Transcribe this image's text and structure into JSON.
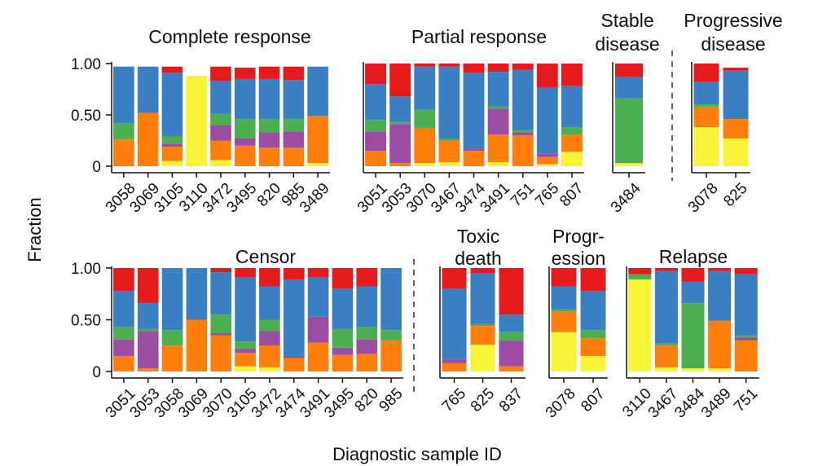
{
  "figure": {
    "y_axis_label": "Fraction",
    "x_axis_label": "Diagnostic sample ID",
    "y_tick_labels": [
      "1.00",
      "0.50",
      "0"
    ]
  },
  "colors": {
    "red": "#e41a1c",
    "blue": "#3a7fc1",
    "green": "#4caf4f",
    "purple": "#9b4da3",
    "orange": "#ff7f0e",
    "yellow": "#f7f336"
  },
  "chart_data": [
    {
      "type": "bar",
      "stacked": true,
      "title": "Complete response",
      "categories": [
        "3058",
        "3069",
        "3105",
        "3110",
        "3472",
        "3495",
        "820",
        "985",
        "3489"
      ],
      "ylim": [
        0,
        1
      ],
      "series": [
        {
          "name": "yellow",
          "values": [
            0.0,
            0.0,
            0.05,
            0.88,
            0.06,
            0.0,
            0.0,
            0.0,
            0.03
          ]
        },
        {
          "name": "orange",
          "values": [
            0.26,
            0.52,
            0.14,
            0.0,
            0.19,
            0.2,
            0.18,
            0.18,
            0.46
          ]
        },
        {
          "name": "purple",
          "values": [
            0.0,
            0.0,
            0.03,
            0.0,
            0.15,
            0.07,
            0.15,
            0.16,
            0.0
          ]
        },
        {
          "name": "green",
          "values": [
            0.16,
            0.0,
            0.07,
            0.0,
            0.11,
            0.19,
            0.13,
            0.12,
            0.0
          ]
        },
        {
          "name": "blue",
          "values": [
            0.55,
            0.45,
            0.62,
            0.0,
            0.32,
            0.39,
            0.39,
            0.38,
            0.48
          ]
        },
        {
          "name": "red",
          "values": [
            0.0,
            0.0,
            0.06,
            0.0,
            0.14,
            0.11,
            0.12,
            0.13,
            0.0
          ]
        }
      ]
    },
    {
      "type": "bar",
      "stacked": true,
      "title": "Partial response",
      "categories": [
        "3051",
        "3053",
        "3070",
        "3467",
        "3474",
        "3491",
        "751",
        "765",
        "807"
      ],
      "ylim": [
        0,
        1
      ],
      "series": [
        {
          "name": "yellow",
          "values": [
            0.0,
            0.0,
            0.03,
            0.04,
            0.0,
            0.04,
            0.0,
            0.02,
            0.14
          ]
        },
        {
          "name": "orange",
          "values": [
            0.15,
            0.03,
            0.34,
            0.21,
            0.15,
            0.27,
            0.3,
            0.07,
            0.17
          ]
        },
        {
          "name": "purple",
          "values": [
            0.19,
            0.38,
            0.0,
            0.0,
            0.02,
            0.25,
            0.03,
            0.03,
            0.0
          ]
        },
        {
          "name": "green",
          "values": [
            0.11,
            0.02,
            0.18,
            0.02,
            0.0,
            0.02,
            0.02,
            0.0,
            0.07
          ]
        },
        {
          "name": "blue",
          "values": [
            0.35,
            0.25,
            0.42,
            0.7,
            0.74,
            0.34,
            0.59,
            0.65,
            0.4
          ]
        },
        {
          "name": "red",
          "values": [
            0.2,
            0.32,
            0.03,
            0.03,
            0.09,
            0.08,
            0.06,
            0.23,
            0.22
          ]
        }
      ]
    },
    {
      "type": "bar",
      "stacked": true,
      "title": "Stable disease",
      "title_lines": [
        "Stable",
        "disease"
      ],
      "categories": [
        "3484"
      ],
      "ylim": [
        0,
        1
      ],
      "series": [
        {
          "name": "yellow",
          "values": [
            0.03
          ]
        },
        {
          "name": "green",
          "values": [
            0.63
          ]
        },
        {
          "name": "blue",
          "values": [
            0.21
          ]
        },
        {
          "name": "red",
          "values": [
            0.13
          ]
        }
      ]
    },
    {
      "type": "bar",
      "stacked": true,
      "title": "Progressive disease",
      "title_lines": [
        "Progressive",
        "disease"
      ],
      "categories": [
        "3078",
        "825"
      ],
      "ylim": [
        0,
        1
      ],
      "series": [
        {
          "name": "yellow",
          "values": [
            0.38,
            0.27
          ]
        },
        {
          "name": "orange",
          "values": [
            0.2,
            0.19
          ]
        },
        {
          "name": "green",
          "values": [
            0.02,
            0.0
          ]
        },
        {
          "name": "blue",
          "values": [
            0.22,
            0.47
          ]
        },
        {
          "name": "red",
          "values": [
            0.18,
            0.03
          ]
        }
      ]
    },
    {
      "type": "bar",
      "stacked": true,
      "title": "Censor",
      "categories": [
        "3051",
        "3053",
        "3058",
        "3069",
        "3070",
        "3105",
        "3472",
        "3474",
        "3491",
        "3495",
        "820",
        "985"
      ],
      "ylim": [
        0,
        1
      ],
      "series": [
        {
          "name": "yellow",
          "values": [
            0.0,
            0.0,
            0.0,
            0.0,
            0.0,
            0.05,
            0.04,
            0.0,
            0.0,
            0.0,
            0.0,
            0.0
          ]
        },
        {
          "name": "orange",
          "values": [
            0.15,
            0.03,
            0.25,
            0.5,
            0.35,
            0.13,
            0.21,
            0.13,
            0.28,
            0.16,
            0.17,
            0.3
          ]
        },
        {
          "name": "purple",
          "values": [
            0.16,
            0.36,
            0.0,
            0.0,
            0.02,
            0.04,
            0.14,
            0.02,
            0.25,
            0.07,
            0.14,
            0.0
          ]
        },
        {
          "name": "green",
          "values": [
            0.12,
            0.02,
            0.15,
            0.0,
            0.18,
            0.07,
            0.11,
            0.0,
            0.0,
            0.18,
            0.12,
            0.1
          ]
        },
        {
          "name": "blue",
          "values": [
            0.35,
            0.25,
            0.6,
            0.5,
            0.41,
            0.62,
            0.32,
            0.74,
            0.38,
            0.39,
            0.39,
            0.6
          ]
        },
        {
          "name": "red",
          "values": [
            0.22,
            0.34,
            0.0,
            0.0,
            0.04,
            0.09,
            0.18,
            0.11,
            0.09,
            0.2,
            0.18,
            0.0
          ]
        }
      ]
    },
    {
      "type": "bar",
      "stacked": true,
      "title": "Toxic death",
      "title_lines": [
        "Toxic",
        "death"
      ],
      "categories": [
        "765",
        "825",
        "837"
      ],
      "ylim": [
        0,
        1
      ],
      "series": [
        {
          "name": "yellow",
          "values": [
            0.0,
            0.26,
            0.0
          ]
        },
        {
          "name": "orange",
          "values": [
            0.08,
            0.18,
            0.05
          ]
        },
        {
          "name": "purple",
          "values": [
            0.04,
            0.0,
            0.25
          ]
        },
        {
          "name": "green",
          "values": [
            0.0,
            0.02,
            0.08
          ]
        },
        {
          "name": "blue",
          "values": [
            0.68,
            0.49,
            0.17
          ]
        },
        {
          "name": "red",
          "values": [
            0.2,
            0.05,
            0.45
          ]
        }
      ]
    },
    {
      "type": "bar",
      "stacked": true,
      "title": "Progression",
      "title_lines": [
        "Progr-",
        "ession"
      ],
      "categories": [
        "3078",
        "807"
      ],
      "ylim": [
        0,
        1
      ],
      "series": [
        {
          "name": "yellow",
          "values": [
            0.38,
            0.15
          ]
        },
        {
          "name": "orange",
          "values": [
            0.2,
            0.17
          ]
        },
        {
          "name": "green",
          "values": [
            0.02,
            0.08
          ]
        },
        {
          "name": "blue",
          "values": [
            0.22,
            0.38
          ]
        },
        {
          "name": "red",
          "values": [
            0.18,
            0.22
          ]
        }
      ]
    },
    {
      "type": "bar",
      "stacked": true,
      "title": "Relapse",
      "categories": [
        "3110",
        "3467",
        "3484",
        "3489",
        "751"
      ],
      "ylim": [
        0,
        1
      ],
      "series": [
        {
          "name": "yellow",
          "values": [
            0.89,
            0.04,
            0.03,
            0.03,
            0.0
          ]
        },
        {
          "name": "orange",
          "values": [
            0.0,
            0.21,
            0.0,
            0.46,
            0.3
          ]
        },
        {
          "name": "purple",
          "values": [
            0.0,
            0.0,
            0.0,
            0.0,
            0.03
          ]
        },
        {
          "name": "green",
          "values": [
            0.05,
            0.02,
            0.63,
            0.0,
            0.02
          ]
        },
        {
          "name": "blue",
          "values": [
            0.0,
            0.7,
            0.21,
            0.48,
            0.59
          ]
        },
        {
          "name": "red",
          "values": [
            0.06,
            0.03,
            0.13,
            0.03,
            0.06
          ]
        }
      ]
    }
  ]
}
